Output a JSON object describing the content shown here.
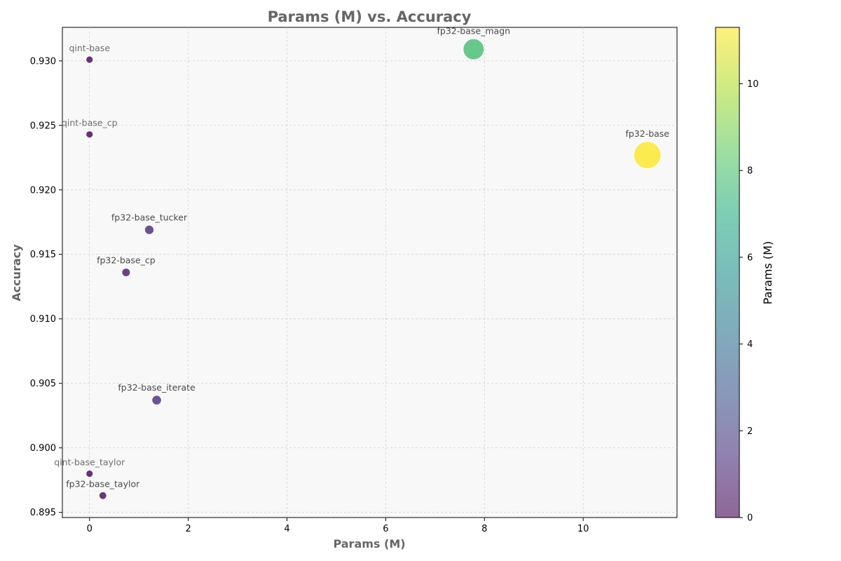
{
  "chart_data": {
    "type": "scatter",
    "title": "Params (M) vs. Accuracy",
    "xlabel": "Params (M)",
    "ylabel": "Accuracy",
    "xlim": [
      -0.55,
      11.9
    ],
    "ylim": [
      0.8946,
      0.9326
    ],
    "xticks": [
      0,
      2,
      4,
      6,
      8,
      10
    ],
    "yticks": [
      0.895,
      0.9,
      0.905,
      0.91,
      0.915,
      0.92,
      0.925,
      0.93
    ],
    "grid": true,
    "colorbar": {
      "label": "Params (M)",
      "range": [
        0,
        11.3
      ],
      "ticks": [
        0,
        2,
        4,
        6,
        8,
        10
      ]
    },
    "points": [
      {
        "label": "qint-base",
        "x": 0.0,
        "y": 0.9301,
        "params": 0.0
      },
      {
        "label": "qint-base_cp",
        "x": 0.0,
        "y": 0.9243,
        "params": 0.0
      },
      {
        "label": "fp32-base_magn",
        "x": 7.78,
        "y": 0.9309,
        "params": 7.78
      },
      {
        "label": "fp32-base",
        "x": 11.3,
        "y": 0.9227,
        "params": 11.3
      },
      {
        "label": "fp32-base_tucker",
        "x": 1.21,
        "y": 0.9169,
        "params": 1.21
      },
      {
        "label": "fp32-base_cp",
        "x": 0.74,
        "y": 0.9136,
        "params": 0.74
      },
      {
        "label": "fp32-base_iterate",
        "x": 1.36,
        "y": 0.9037,
        "params": 1.36
      },
      {
        "label": "qint-base_taylor",
        "x": 0.0,
        "y": 0.898,
        "params": 0.0
      },
      {
        "label": "fp32-base_taylor",
        "x": 0.27,
        "y": 0.8963,
        "params": 0.27
      }
    ]
  }
}
